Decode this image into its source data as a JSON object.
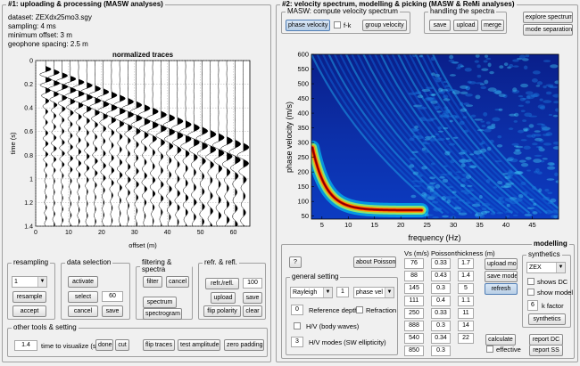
{
  "left_panel": {
    "title": "#1: uploading & processing (MASW analyses)",
    "info": {
      "dataset": "dataset: ZEXdx25mo3.sgy",
      "sampling": "sampling: 4 ms",
      "min_offset": "minimum offset: 3 m",
      "geophone_spacing": "geophone spacing: 2.5 m"
    },
    "chart_title": "normalized traces",
    "resampling": {
      "title": "resampling",
      "factor": "1",
      "resample": "resample",
      "accept": "accept"
    },
    "data_selection": {
      "title": "data selection",
      "activate": "activate",
      "select": "select",
      "select_value": "60",
      "cancel": "cancel",
      "save": "save"
    },
    "filtering": {
      "title": "filtering & spectra",
      "filter": "filter",
      "cancel": "cancel",
      "spectrum": "spectrum",
      "spectrogram": "spectrogram"
    },
    "refr": {
      "title": "refr. & refl.",
      "refr_refl": "refr./refl.",
      "value": "100",
      "upload": "upload",
      "save": "save",
      "flip_polarity": "flip polarity",
      "clear": "clear"
    },
    "other_tools": {
      "title": "other tools & setting",
      "time_value": "1.4",
      "time_label": "time to visualize (s)",
      "done": "done",
      "cut": "cut",
      "flip_traces": "flip traces",
      "test_amplitude": "test amplitude",
      "zero_padding": "zero padding"
    }
  },
  "right_panel": {
    "title": "#2: velocity spectrum, modelling & picking (MASW & ReMi analyses)",
    "masw": {
      "title": "MASW: compute velocity spectrum",
      "phase_velocity": "phase velocity",
      "fk_label": "f-k",
      "group_velocity": "group velocity"
    },
    "handling": {
      "title": "handling the spectra",
      "save": "save",
      "upload": "upload",
      "merge": "merge"
    },
    "explore": "explore spectrum",
    "mode_separation": "mode separation",
    "modelling": {
      "title": "modelling",
      "help": "?",
      "about_poisson": "about Poisson",
      "vs_header": "Vs (m/s)",
      "poisson_header": "Poisson",
      "thickness_header": "thickness (m)",
      "vs": [
        "76",
        "88",
        "145",
        "111",
        "250",
        "888",
        "540",
        "850"
      ],
      "poisson": [
        "0.33",
        "0.43",
        "0.3",
        "0.4",
        "0.33",
        "0.3",
        "0.34",
        "0.3"
      ],
      "thickness": [
        "1.7",
        "1.4",
        "5",
        "1.1",
        "11",
        "14",
        "22"
      ],
      "upload_mod": "upload mod.",
      "save_model": "save model",
      "refresh": "refresh",
      "calculate": "calculate",
      "effective": "effective",
      "report_dc": "report DC",
      "report_ss": "report SS",
      "general": {
        "title": "general setting",
        "wave_type": "Rayleigh",
        "mode_number": "1",
        "velocity_type": "phase vel",
        "ref_depth_value": "0",
        "ref_depth_label": "Reference depth",
        "refraction_label": "Refraction",
        "hv_body_label": "H/V (body waves)",
        "hv_modes_value": "3",
        "hv_modes_label": "H/V modes (SW ellipticity)"
      },
      "synthetics": {
        "title": "synthetics",
        "dataset": "ZEX",
        "shows_dc": "shows DC",
        "show_model": "show model",
        "k_value": "6",
        "k_label": "k factor",
        "button": "synthetics"
      }
    }
  },
  "chart_data": [
    {
      "type": "line",
      "title": "normalized traces",
      "xlabel": "offset (m)",
      "ylabel": "time (s)",
      "xlim": [
        0,
        65
      ],
      "ylim": [
        1.4,
        0
      ],
      "x_ticks": [
        0,
        10,
        20,
        30,
        40,
        50,
        60
      ],
      "y_ticks": [
        0,
        0.2,
        0.4,
        0.6,
        0.8,
        1,
        1.2,
        1.4
      ],
      "trace_offsets": [
        3,
        5.5,
        8,
        10.5,
        13,
        15.5,
        18,
        20.5,
        23,
        25.5,
        28,
        30.5,
        33,
        35.5,
        38,
        40.5,
        43,
        45.5,
        48,
        50.5,
        53,
        55.5,
        58,
        60.5,
        63
      ],
      "grid": true
    },
    {
      "type": "heatmap",
      "xlabel": "frequency (Hz)",
      "ylabel": "phase velocity (m/s)",
      "xlim": [
        3,
        50
      ],
      "ylim": [
        40,
        600
      ],
      "x_ticks": [
        5,
        10,
        15,
        20,
        25,
        30,
        35,
        40,
        45
      ],
      "y_ticks": [
        50,
        100,
        150,
        200,
        250,
        300,
        350,
        400,
        450,
        500,
        550,
        600
      ],
      "colormap": "jet"
    }
  ]
}
